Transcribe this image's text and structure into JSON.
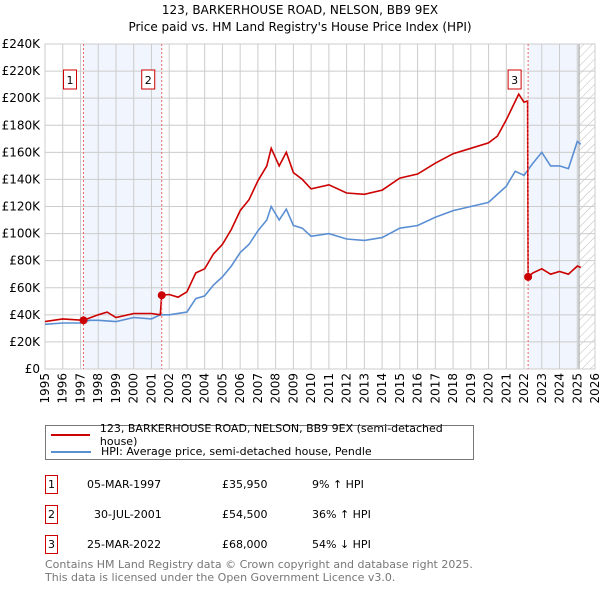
{
  "chart_data": {
    "type": "line",
    "title": "123, BARKERHOUSE ROAD, NELSON, BB9 9EX",
    "subtitle": "Price paid vs. HM Land Registry's House Price Index (HPI)",
    "xlim": [
      1995,
      2026
    ],
    "ylim": [
      0,
      240000
    ],
    "x_ticks": [
      "1995",
      "1996",
      "1997",
      "1998",
      "1999",
      "2000",
      "2001",
      "2002",
      "2003",
      "2004",
      "2005",
      "2006",
      "2007",
      "2008",
      "2009",
      "2010",
      "2011",
      "2012",
      "2013",
      "2014",
      "2015",
      "2016",
      "2017",
      "2018",
      "2019",
      "2020",
      "2021",
      "2022",
      "2023",
      "2024",
      "2025",
      "2026"
    ],
    "y_ticks": [
      {
        "v": 0,
        "label": "£0"
      },
      {
        "v": 20000,
        "label": "£20K"
      },
      {
        "v": 40000,
        "label": "£40K"
      },
      {
        "v": 60000,
        "label": "£60K"
      },
      {
        "v": 80000,
        "label": "£80K"
      },
      {
        "v": 100000,
        "label": "£100K"
      },
      {
        "v": 120000,
        "label": "£120K"
      },
      {
        "v": 140000,
        "label": "£140K"
      },
      {
        "v": 160000,
        "label": "£160K"
      },
      {
        "v": 180000,
        "label": "£180K"
      },
      {
        "v": 200000,
        "label": "£200K"
      },
      {
        "v": 220000,
        "label": "£220K"
      },
      {
        "v": 240000,
        "label": "£240K"
      }
    ],
    "grid": true,
    "series": [
      {
        "name": "123, BARKERHOUSE ROAD, NELSON, BB9 9EX (semi-detached house)",
        "color": "#cc0000",
        "x": [
          1995,
          1996,
          1997.17,
          1998,
          1998.5,
          1999,
          2000,
          2001,
          2001.5,
          2001.58,
          2002,
          2002.5,
          2003,
          2003.5,
          2004,
          2004.5,
          2005,
          2005.5,
          2006,
          2006.5,
          2007,
          2007.5,
          2007.75,
          2008.2,
          2008.6,
          2009,
          2009.5,
          2010,
          2011,
          2012,
          2013,
          2014,
          2015,
          2016,
          2017,
          2018,
          2019,
          2020,
          2020.5,
          2021,
          2021.7,
          2022,
          2022.2,
          2022.23,
          2022.5,
          2023,
          2023.5,
          2024,
          2024.5,
          2025,
          2025.2
        ],
        "y": [
          35000,
          37000,
          35950,
          40000,
          42000,
          38000,
          41000,
          41000,
          40000,
          54500,
          55000,
          53000,
          57000,
          71000,
          74000,
          85000,
          92000,
          103000,
          117000,
          125000,
          139000,
          150000,
          163000,
          150000,
          160000,
          145000,
          140000,
          133000,
          136000,
          130000,
          129000,
          132000,
          141000,
          144000,
          152000,
          159000,
          163000,
          167000,
          172000,
          184000,
          203000,
          197000,
          198000,
          68000,
          71000,
          74000,
          70000,
          72000,
          70000,
          76000,
          75000
        ]
      },
      {
        "name": "HPI: Average price, semi-detached house, Pendle",
        "color": "#5b8fd4",
        "x": [
          1995,
          1996,
          1997,
          1997.5,
          1998,
          1999,
          2000,
          2001,
          2001.5,
          2002,
          2003,
          2003.5,
          2004,
          2004.5,
          2005,
          2005.5,
          2006,
          2006.5,
          2007,
          2007.5,
          2007.75,
          2008.2,
          2008.6,
          2009,
          2009.5,
          2010,
          2011,
          2012,
          2013,
          2014,
          2015,
          2016,
          2017,
          2018,
          2019,
          2020,
          2021,
          2021.5,
          2022,
          2022.5,
          2023,
          2023.5,
          2024,
          2024.5,
          2025,
          2025.2
        ],
        "y": [
          33000,
          34000,
          34000,
          36000,
          36000,
          35000,
          38000,
          37000,
          40000,
          40000,
          42000,
          52000,
          54000,
          62000,
          68000,
          76000,
          86000,
          92000,
          102000,
          110000,
          120000,
          110000,
          118000,
          106000,
          104000,
          98000,
          100000,
          96000,
          95000,
          97000,
          104000,
          106000,
          112000,
          117000,
          120000,
          123000,
          135000,
          146000,
          143000,
          152000,
          160000,
          150000,
          150000,
          148000,
          168000,
          166000
        ]
      }
    ],
    "sales": [
      {
        "id": "1",
        "x": 1997.17,
        "y": 35950,
        "date": "05-MAR-1997",
        "price": "£35,950",
        "hpi": "9% ↑ HPI"
      },
      {
        "id": "2",
        "x": 2001.58,
        "y": 54500,
        "date": "30-JUL-2001",
        "price": "£54,500",
        "hpi": "36% ↑ HPI"
      },
      {
        "id": "3",
        "x": 2022.23,
        "y": 68000,
        "date": "25-MAR-2022",
        "price": "£68,000",
        "hpi": "54% ↓ HPI"
      }
    ],
    "shaded_ranges": [
      [
        1997.17,
        2001.58
      ],
      [
        2022.23,
        2025.1
      ]
    ],
    "forecast_hatch_from": 2025.1,
    "legend_placement": "below"
  },
  "footer": {
    "line1": "Contains HM Land Registry data © Crown copyright and database right 2025.",
    "line2": "This data is licensed under the Open Government Licence v3.0."
  }
}
